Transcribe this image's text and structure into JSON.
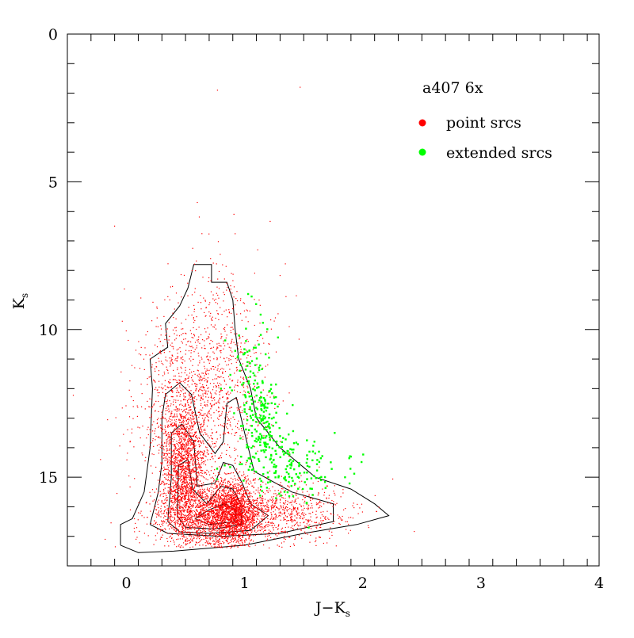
{
  "chart_data": {
    "type": "scatter",
    "title": "",
    "annotation": "a407 6x",
    "xlabel": "J−K",
    "xlabel_sub": "s",
    "ylabel": "K",
    "ylabel_sub": "s",
    "xlim": [
      -0.5,
      4
    ],
    "ylim": [
      0,
      18
    ],
    "y_inverted": true,
    "x_ticks": [
      0,
      1,
      2,
      3,
      4
    ],
    "x_tick_labels": [
      "0",
      "1",
      "2",
      "3",
      "4"
    ],
    "y_ticks": [
      0,
      5,
      10,
      15
    ],
    "y_tick_labels": [
      "0",
      "5",
      "10",
      "15"
    ],
    "legend": {
      "position": "top-right",
      "entries": [
        {
          "name": "point srcs",
          "color": "#ff0000"
        },
        {
          "name": "extended srcs",
          "color": "#00ff00"
        }
      ]
    },
    "series": [
      {
        "name": "point srcs",
        "color": "#ff0000",
        "distribution": {
          "clumps": [
            {
              "x": 0.48,
              "y": 14.6,
              "sx": 0.09,
              "sy": 1.1,
              "weight": 0.22
            },
            {
              "x": 0.9,
              "y": 16.2,
              "sx": 0.1,
              "sy": 0.55,
              "weight": 0.24
            },
            {
              "x": 0.65,
              "y": 16.3,
              "sx": 0.22,
              "sy": 0.5,
              "weight": 0.2
            },
            {
              "x": 1.3,
              "y": 16.2,
              "sx": 0.3,
              "sy": 0.5,
              "weight": 0.12
            },
            {
              "x": 0.55,
              "y": 12.8,
              "sx": 0.25,
              "sy": 1.5,
              "weight": 0.14
            },
            {
              "x": 0.75,
              "y": 11.0,
              "sx": 0.25,
              "sy": 1.6,
              "weight": 0.08
            }
          ],
          "count": 7000
        },
        "outliers": [
          [
            0.77,
            1.9
          ],
          [
            1.47,
            1.8
          ],
          [
            0.6,
            5.7
          ],
          [
            0.91,
            6.1
          ],
          [
            -0.1,
            6.5
          ],
          [
            0.08,
            10.7
          ],
          [
            -0.22,
            14.4
          ],
          [
            -0.18,
            17.1
          ]
        ]
      },
      {
        "name": "extended srcs",
        "color": "#00ff00",
        "distribution": {
          "clumps": [
            {
              "x": 1.15,
              "y": 13.2,
              "sx": 0.1,
              "sy": 0.7,
              "weight": 0.35
            },
            {
              "x": 1.35,
              "y": 14.6,
              "sx": 0.22,
              "sy": 0.55,
              "weight": 0.45
            },
            {
              "x": 1.05,
              "y": 11.4,
              "sx": 0.08,
              "sy": 0.9,
              "weight": 0.2
            }
          ],
          "count": 380
        },
        "outliers": [
          [
            1.03,
            8.8
          ],
          [
            0.8,
            12.0
          ],
          [
            1.9,
            14.3
          ],
          [
            1.85,
            15.0
          ]
        ]
      }
    ],
    "contours": [
      [
        [
          -0.05,
          17.3
        ],
        [
          -0.05,
          16.6
        ],
        [
          0.05,
          16.4
        ],
        [
          0.15,
          15.5
        ],
        [
          0.2,
          14.0
        ],
        [
          0.22,
          12.0
        ],
        [
          0.2,
          11.0
        ],
        [
          0.35,
          10.6
        ],
        [
          0.33,
          9.8
        ],
        [
          0.45,
          9.2
        ],
        [
          0.52,
          8.6
        ],
        [
          0.57,
          7.8
        ],
        [
          0.72,
          7.8
        ],
        [
          0.72,
          8.4
        ],
        [
          0.85,
          8.4
        ],
        [
          0.9,
          9.0
        ],
        [
          0.92,
          10.0
        ],
        [
          0.95,
          11.0
        ],
        [
          1.05,
          12.0
        ],
        [
          1.1,
          13.0
        ],
        [
          1.3,
          14.0
        ],
        [
          1.6,
          15.0
        ],
        [
          1.9,
          15.4
        ],
        [
          2.1,
          15.9
        ],
        [
          2.22,
          16.3
        ],
        [
          1.95,
          16.6
        ],
        [
          1.5,
          16.9
        ],
        [
          1.0,
          17.3
        ],
        [
          0.4,
          17.5
        ],
        [
          0.1,
          17.55
        ],
        [
          -0.05,
          17.3
        ]
      ],
      [
        [
          0.2,
          16.6
        ],
        [
          0.27,
          15.5
        ],
        [
          0.3,
          14.5
        ],
        [
          0.3,
          13.0
        ],
        [
          0.33,
          12.2
        ],
        [
          0.45,
          11.8
        ],
        [
          0.55,
          12.2
        ],
        [
          0.62,
          13.5
        ],
        [
          0.75,
          14.2
        ],
        [
          0.82,
          13.8
        ],
        [
          0.85,
          12.5
        ],
        [
          0.93,
          12.3
        ],
        [
          1.0,
          13.5
        ],
        [
          1.08,
          14.8
        ],
        [
          1.4,
          15.5
        ],
        [
          1.75,
          15.9
        ],
        [
          1.75,
          16.5
        ],
        [
          1.3,
          16.9
        ],
        [
          0.8,
          17.0
        ],
        [
          0.35,
          16.9
        ],
        [
          0.2,
          16.6
        ]
      ],
      [
        [
          0.35,
          16.5
        ],
        [
          0.38,
          15.0
        ],
        [
          0.38,
          13.5
        ],
        [
          0.47,
          13.2
        ],
        [
          0.57,
          13.8
        ],
        [
          0.6,
          15.3
        ],
        [
          0.75,
          15.2
        ],
        [
          0.82,
          14.5
        ],
        [
          0.9,
          14.6
        ],
        [
          0.98,
          15.2
        ],
        [
          1.05,
          15.9
        ],
        [
          1.2,
          16.3
        ],
        [
          1.05,
          16.8
        ],
        [
          0.7,
          16.9
        ],
        [
          0.45,
          16.85
        ],
        [
          0.35,
          16.5
        ]
      ],
      [
        [
          0.43,
          16.3
        ],
        [
          0.44,
          14.6
        ],
        [
          0.52,
          14.4
        ],
        [
          0.56,
          15.4
        ],
        [
          0.68,
          15.9
        ],
        [
          0.8,
          15.3
        ],
        [
          0.9,
          15.4
        ],
        [
          0.98,
          16.0
        ],
        [
          0.97,
          16.6
        ],
        [
          0.75,
          16.75
        ],
        [
          0.5,
          16.7
        ],
        [
          0.43,
          16.3
        ]
      ],
      [
        [
          0.58,
          16.4
        ],
        [
          0.7,
          16.1
        ],
        [
          0.83,
          15.9
        ],
        [
          0.93,
          16.1
        ],
        [
          0.92,
          16.5
        ],
        [
          0.7,
          16.6
        ],
        [
          0.58,
          16.4
        ]
      ]
    ]
  }
}
